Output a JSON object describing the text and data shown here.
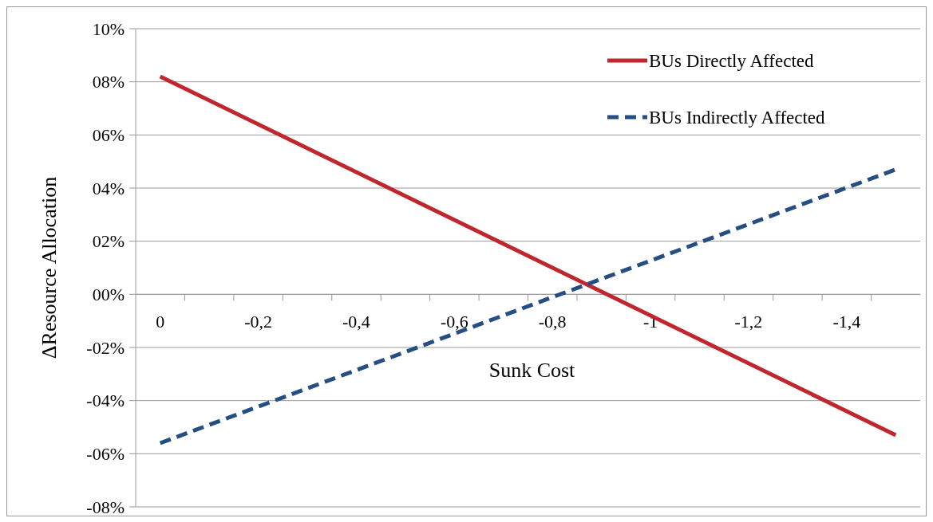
{
  "chart_data": {
    "type": "line",
    "xlabel": "Sunk Cost",
    "ylabel": "ΔResource Allocation",
    "x": [
      0,
      -1.5
    ],
    "series": [
      {
        "name": "BUs Directly Affected",
        "color": "#c0262d",
        "values": [
          8.2,
          -5.3
        ],
        "line_style": "solid"
      },
      {
        "name": "BUs Indirectly Affected",
        "color": "#254f83",
        "values": [
          -5.6,
          4.7
        ],
        "line_style": "dashed"
      }
    ],
    "xlim": [
      0.05,
      -1.55
    ],
    "xticks": [
      {
        "value": 0,
        "label": "0"
      },
      {
        "value": -0.2,
        "label": "-0,2"
      },
      {
        "value": -0.4,
        "label": "-0,4"
      },
      {
        "value": -0.6,
        "label": "-0,6"
      },
      {
        "value": -0.8,
        "label": "-0,8"
      },
      {
        "value": -1,
        "label": "-1"
      },
      {
        "value": -1.2,
        "label": "-1,2"
      },
      {
        "value": -1.4,
        "label": "-1,4"
      },
      {
        "value": -0.05,
        "label": null
      },
      {
        "value": -0.15,
        "label": null
      },
      {
        "value": -0.25,
        "label": null
      },
      {
        "value": -0.35,
        "label": null
      },
      {
        "value": -0.45,
        "label": null
      },
      {
        "value": -0.55,
        "label": null
      },
      {
        "value": -0.65,
        "label": null
      },
      {
        "value": -0.75,
        "label": null
      },
      {
        "value": -0.85,
        "label": null
      },
      {
        "value": -0.95,
        "label": null
      },
      {
        "value": -1.05,
        "label": null
      },
      {
        "value": -1.15,
        "label": null
      },
      {
        "value": -1.25,
        "label": null
      },
      {
        "value": -1.35,
        "label": null
      },
      {
        "value": -1.45,
        "label": null
      }
    ],
    "ylim": [
      -8,
      10
    ],
    "yticks": [
      {
        "value": 10,
        "label": "10%"
      },
      {
        "value": 8,
        "label": "08%"
      },
      {
        "value": 6,
        "label": "06%"
      },
      {
        "value": 4,
        "label": "04%"
      },
      {
        "value": 2,
        "label": "02%"
      },
      {
        "value": 0,
        "label": "00%"
      },
      {
        "value": -2,
        "label": "-02%"
      },
      {
        "value": -4,
        "label": "-04%"
      },
      {
        "value": -6,
        "label": "-06%"
      },
      {
        "value": -8,
        "label": "-08%"
      }
    ],
    "grid": "y",
    "legend": "top right",
    "marker": "none"
  }
}
